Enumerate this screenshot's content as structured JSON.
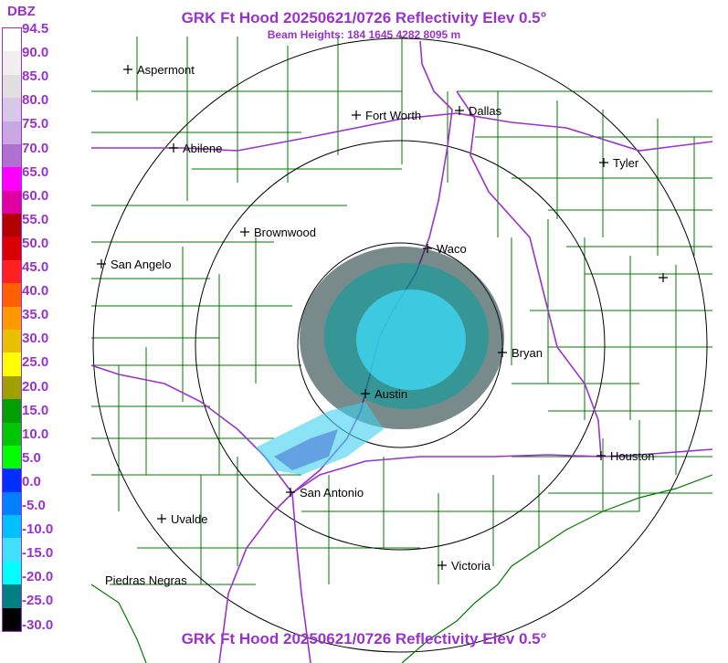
{
  "header": {
    "title": "GRK Ft Hood 20250621/0726 Reflectivity Elev 0.5°",
    "subtitle": "Beam Heights: 184 1645 4282 8095 m",
    "footer_title": "GRK Ft Hood 20250621/0726 Reflectivity Elev 0.5°"
  },
  "colorbar": {
    "unit": "DBZ",
    "labels": [
      "94.5",
      "90.0",
      "85.0",
      "80.0",
      "75.0",
      "70.0",
      "65.0",
      "60.0",
      "55.0",
      "50.0",
      "45.0",
      "40.0",
      "35.0",
      "30.0",
      "25.0",
      "20.0",
      "15.0",
      "10.0",
      "5.0",
      "0.0",
      "-5.0",
      "-10.0",
      "-15.0",
      "-20.0",
      "-25.0",
      "-30.0"
    ],
    "colors": [
      "#ffffff",
      "#f0f0f0",
      "#e0e0e0",
      "#d8c8e8",
      "#c8a8e0",
      "#b070d0",
      "#ff00ff",
      "#e000a0",
      "#b00000",
      "#d80000",
      "#ff2020",
      "#ff6000",
      "#ff9900",
      "#e8c000",
      "#ffff00",
      "#a0a000",
      "#00a000",
      "#00c800",
      "#00ff00",
      "#0030ff",
      "#0080ff",
      "#00c0ff",
      "#40e0ff",
      "#00ffff",
      "#008080",
      "#000000"
    ]
  },
  "map": {
    "cities": [
      {
        "name": "Aspermont"
      },
      {
        "name": "Fort Worth"
      },
      {
        "name": "Dallas"
      },
      {
        "name": "Abilene"
      },
      {
        "name": "Tyler"
      },
      {
        "name": "Brownwood"
      },
      {
        "name": "Waco"
      },
      {
        "name": "San Angelo"
      },
      {
        "name": "Bryan"
      },
      {
        "name": "Austin"
      },
      {
        "name": "Houston"
      },
      {
        "name": "San Antonio"
      },
      {
        "name": "Uvalde"
      },
      {
        "name": "Victoria"
      },
      {
        "name": "Piedras Negras"
      }
    ],
    "range_rings": 3
  }
}
